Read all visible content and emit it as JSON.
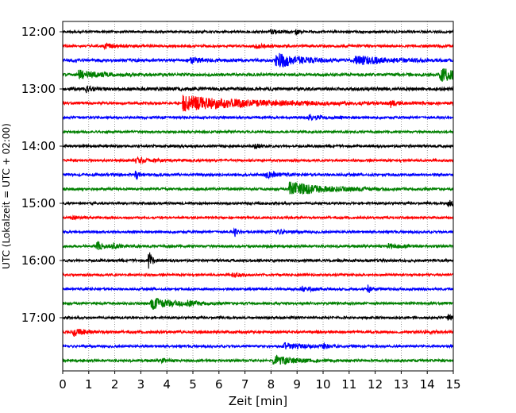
{
  "chart_data": {
    "type": "line",
    "subtype": "helicorder",
    "title": "",
    "xlabel": "Zeit  [min]",
    "ylabel": "UTC (Lokalzeit = UTC + 02:00)",
    "xlim": [
      0,
      15
    ],
    "x_ticks": [
      0,
      1,
      2,
      3,
      4,
      5,
      6,
      7,
      8,
      9,
      10,
      11,
      12,
      13,
      14,
      15
    ],
    "x_grid": "dotted",
    "y_tick_labels": [
      "12:00",
      "13:00",
      "14:00",
      "15:00",
      "16:00",
      "17:00"
    ],
    "trace_interval_min": 15,
    "colors_cycle": [
      "#000000",
      "#ff0000",
      "#0000ff",
      "#008000"
    ],
    "traces": [
      {
        "start": "12:00",
        "noise": 1.4,
        "events": [
          {
            "t": 8.0,
            "amp": 2.5,
            "dur": 0.3
          },
          {
            "t": 8.95,
            "amp": 4.0,
            "dur": 0.1
          }
        ]
      },
      {
        "start": "12:15",
        "noise": 1.5,
        "events": [
          {
            "t": 1.6,
            "amp": 3.0,
            "dur": 0.3
          },
          {
            "t": 7.4,
            "amp": 3.0,
            "dur": 0.3
          }
        ]
      },
      {
        "start": "12:30",
        "noise": 1.8,
        "events": [
          {
            "t": 4.9,
            "amp": 3.5,
            "dur": 0.4
          },
          {
            "t": 8.2,
            "amp": 10.0,
            "dur": 0.8
          },
          {
            "t": 11.2,
            "amp": 5.0,
            "dur": 1.2
          }
        ]
      },
      {
        "start": "12:45",
        "noise": 1.7,
        "events": [
          {
            "t": 0.6,
            "amp": 5.0,
            "dur": 0.8
          },
          {
            "t": 14.5,
            "amp": 8.0,
            "dur": 1.0
          }
        ]
      },
      {
        "start": "13:00",
        "noise": 2.0,
        "events": [
          {
            "t": 0.9,
            "amp": 4.0,
            "dur": 0.2
          }
        ]
      },
      {
        "start": "13:15",
        "noise": 1.6,
        "events": [
          {
            "t": 4.6,
            "amp": 9.0,
            "dur": 2.5
          },
          {
            "t": 12.6,
            "amp": 6.0,
            "dur": 0.1
          }
        ]
      },
      {
        "start": "13:30",
        "noise": 1.4,
        "events": [
          {
            "t": 9.4,
            "amp": 3.0,
            "dur": 0.6
          }
        ]
      },
      {
        "start": "13:45",
        "noise": 1.3,
        "events": []
      },
      {
        "start": "14:00",
        "noise": 1.5,
        "events": [
          {
            "t": 7.4,
            "amp": 3.0,
            "dur": 0.2
          }
        ]
      },
      {
        "start": "14:15",
        "noise": 1.4,
        "events": [
          {
            "t": 2.8,
            "amp": 3.0,
            "dur": 0.6
          }
        ]
      },
      {
        "start": "14:30",
        "noise": 1.6,
        "events": [
          {
            "t": 2.8,
            "amp": 8.0,
            "dur": 0.1
          },
          {
            "t": 7.8,
            "amp": 4.0,
            "dur": 0.4
          }
        ]
      },
      {
        "start": "14:45",
        "noise": 1.5,
        "events": [
          {
            "t": 8.7,
            "amp": 9.0,
            "dur": 1.2
          }
        ]
      },
      {
        "start": "15:00",
        "noise": 1.4,
        "events": [
          {
            "t": 14.8,
            "amp": 4.0,
            "dur": 0.3
          }
        ]
      },
      {
        "start": "15:15",
        "noise": 1.3,
        "events": [
          {
            "t": 0.3,
            "amp": 3.0,
            "dur": 0.2
          }
        ]
      },
      {
        "start": "15:30",
        "noise": 1.4,
        "events": [
          {
            "t": 6.6,
            "amp": 6.0,
            "dur": 0.1
          },
          {
            "t": 8.2,
            "amp": 3.0,
            "dur": 0.4
          }
        ]
      },
      {
        "start": "15:45",
        "noise": 1.5,
        "events": [
          {
            "t": 1.3,
            "amp": 5.0,
            "dur": 0.3
          },
          {
            "t": 1.9,
            "amp": 3.0,
            "dur": 0.2
          },
          {
            "t": 12.5,
            "amp": 3.0,
            "dur": 0.5
          }
        ]
      },
      {
        "start": "16:00",
        "noise": 1.6,
        "events": [
          {
            "t": 3.3,
            "amp": 16.0,
            "dur": 0.1
          }
        ]
      },
      {
        "start": "16:15",
        "noise": 1.3,
        "events": [
          {
            "t": 6.5,
            "amp": 2.0,
            "dur": 0.3
          }
        ]
      },
      {
        "start": "16:30",
        "noise": 1.4,
        "events": [
          {
            "t": 9.2,
            "amp": 3.0,
            "dur": 0.4
          },
          {
            "t": 11.7,
            "amp": 8.0,
            "dur": 0.1
          }
        ]
      },
      {
        "start": "16:45",
        "noise": 1.5,
        "events": [
          {
            "t": 3.4,
            "amp": 7.0,
            "dur": 0.8
          },
          {
            "t": 4.8,
            "amp": 2.5,
            "dur": 0.3
          }
        ]
      },
      {
        "start": "17:00",
        "noise": 1.4,
        "events": [
          {
            "t": 14.8,
            "amp": 5.0,
            "dur": 0.2
          }
        ]
      },
      {
        "start": "17:15",
        "noise": 1.5,
        "events": [
          {
            "t": 0.4,
            "amp": 5.0,
            "dur": 0.4
          },
          {
            "t": 13.9,
            "amp": 2.0,
            "dur": 0.3
          }
        ]
      },
      {
        "start": "17:30",
        "noise": 1.4,
        "events": [
          {
            "t": 8.5,
            "amp": 4.0,
            "dur": 0.7
          },
          {
            "t": 10.0,
            "amp": 2.5,
            "dur": 0.2
          }
        ]
      },
      {
        "start": "17:45",
        "noise": 1.5,
        "events": [
          {
            "t": 3.8,
            "amp": 3.0,
            "dur": 0.2
          },
          {
            "t": 8.1,
            "amp": 6.0,
            "dur": 0.7
          }
        ]
      }
    ]
  }
}
